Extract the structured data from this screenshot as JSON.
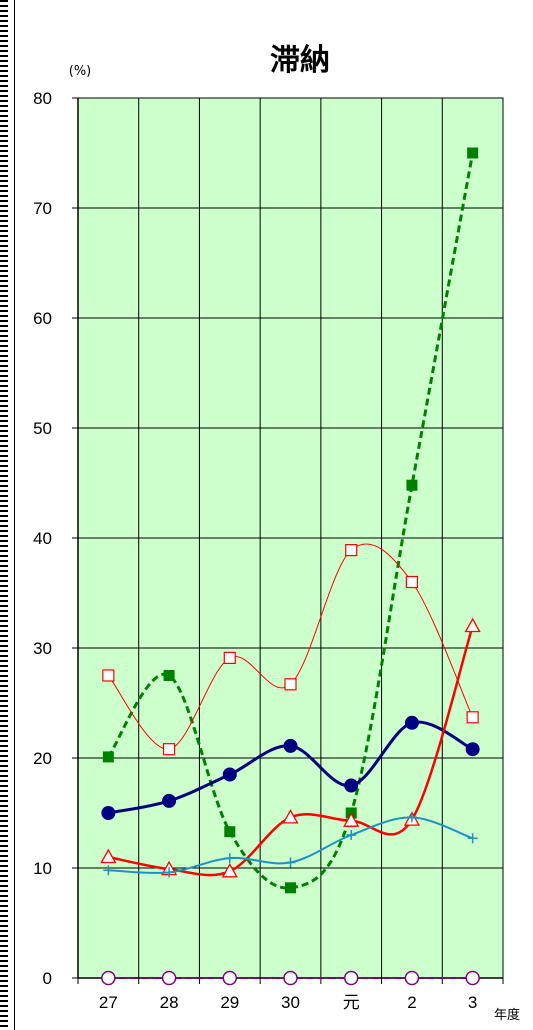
{
  "chart_data": {
    "type": "line",
    "title": "滞納",
    "yunit": "(%)",
    "xunit": "年度",
    "ylim": [
      0,
      80
    ],
    "yticks": [
      0,
      10,
      20,
      30,
      40,
      50,
      60,
      70,
      80
    ],
    "categories": [
      "27",
      "28",
      "29",
      "30",
      "元",
      "2",
      "3"
    ],
    "grid": true,
    "plot_bg": "#ccffcc",
    "series": [
      {
        "color": "#008000",
        "marker": "filled-square",
        "dash": true,
        "width": 3,
        "values": [
          20.1,
          27.5,
          13.3,
          8.2,
          15.0,
          44.8,
          75.0
        ]
      },
      {
        "color": "#ff0000",
        "marker": "open-square",
        "dash": false,
        "width": 1,
        "values": [
          27.5,
          20.8,
          29.1,
          26.7,
          38.9,
          36.0,
          23.7
        ]
      },
      {
        "color": "#000080",
        "marker": "filled-circle",
        "dash": false,
        "width": 3,
        "values": [
          15.0,
          16.1,
          18.5,
          21.1,
          17.5,
          23.2,
          20.8
        ]
      },
      {
        "color": "#ff0000",
        "marker": "open-triangle",
        "dash": false,
        "width": 2.5,
        "values": [
          11.0,
          9.9,
          9.7,
          14.6,
          14.3,
          14.4,
          32.0
        ]
      },
      {
        "color": "#1e90c8",
        "marker": "plus",
        "dash": false,
        "width": 2,
        "values": [
          9.8,
          9.6,
          10.9,
          10.5,
          13.0,
          14.6,
          12.7
        ]
      },
      {
        "color": "#800080",
        "marker": "open-circle",
        "dash": true,
        "width": 2,
        "values": [
          0,
          0,
          0,
          0,
          0,
          0,
          0
        ]
      }
    ]
  }
}
